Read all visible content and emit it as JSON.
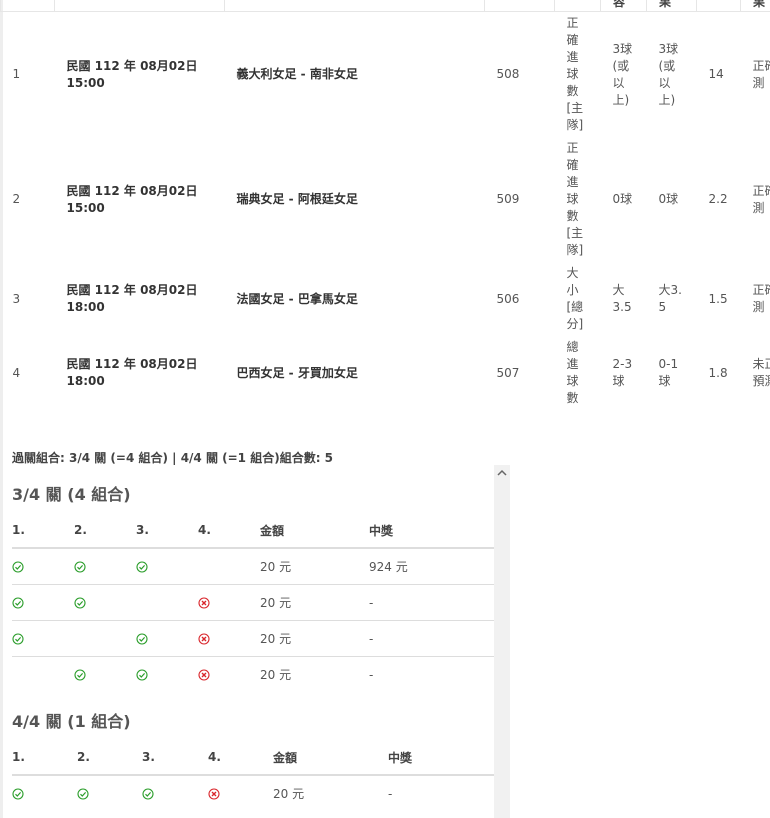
{
  "table": {
    "header": [
      "容",
      "果",
      "果"
    ],
    "rows": [
      {
        "no": "1",
        "date": "民國 112 年 08月02日",
        "time": "15:00",
        "match": "義大利女足 - 南非女足",
        "code": "508",
        "bet_type": "正確進球數[主隊]",
        "selection": "3球(或以上)",
        "result": "3球(或以上)",
        "odds": "14",
        "status": "正確預測"
      },
      {
        "no": "2",
        "date": "民國 112 年 08月02日",
        "time": "15:00",
        "match": "瑞典女足 - 阿根廷女足",
        "code": "509",
        "bet_type": "正確進球數[主隊]",
        "selection": "0球",
        "result": "0球",
        "odds": "2.2",
        "status": "正確預測"
      },
      {
        "no": "3",
        "date": "民國 112 年 08月02日",
        "time": "18:00",
        "match": "法國女足 - 巴拿馬女足",
        "code": "506",
        "bet_type": "大小[總分]",
        "selection": "大3.5",
        "result": "大3.5",
        "odds": "1.5",
        "status": "正確預測"
      },
      {
        "no": "4",
        "date": "民國 112 年 08月02日",
        "time": "18:00",
        "match": "巴西女足 - 牙買加女足",
        "code": "507",
        "bet_type": "總進球數",
        "selection": "2-3球",
        "result": "0-1球",
        "odds": "1.8",
        "status": "未正確預測"
      }
    ]
  },
  "summary": "過關組合: 3/4 關 (=4 組合) | 4/4 關 (=1 組合)組合數: 5",
  "combos": [
    {
      "title": "3/4 關 (4 組合)",
      "columns": [
        "1.",
        "2.",
        "3.",
        "4.",
        "金額",
        "中獎"
      ],
      "rows": [
        {
          "legs": [
            true,
            true,
            true,
            null
          ],
          "amount": "20 元",
          "prize": "924 元"
        },
        {
          "legs": [
            true,
            true,
            null,
            false
          ],
          "amount": "20 元",
          "prize": "-"
        },
        {
          "legs": [
            true,
            null,
            true,
            false
          ],
          "amount": "20 元",
          "prize": "-"
        },
        {
          "legs": [
            null,
            true,
            true,
            false
          ],
          "amount": "20 元",
          "prize": "-"
        }
      ]
    },
    {
      "title": "4/4 關 (1 組合)",
      "columns": [
        "1.",
        "2.",
        "3.",
        "4.",
        "金額",
        "中獎"
      ],
      "rows": [
        {
          "legs": [
            true,
            true,
            true,
            false
          ],
          "amount": "20 元",
          "prize": "-"
        }
      ]
    }
  ]
}
